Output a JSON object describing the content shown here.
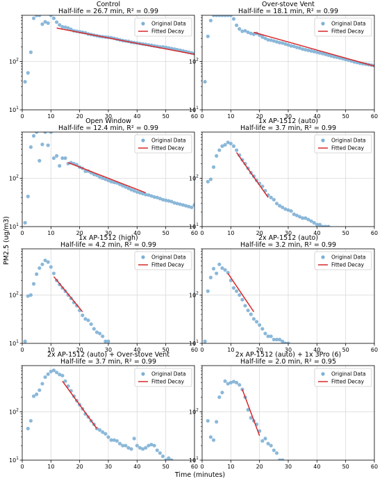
{
  "figure": {
    "xlabel": "Time (minutes)",
    "ylabel": "PM2.5 (ug/m3)"
  },
  "chart_data": [
    {
      "type": "scatter",
      "title": "Control",
      "subtitle": "Half-life = 26.7 min, R² = 0.99",
      "yscale": "log",
      "xlim": [
        0,
        60
      ],
      "ylim": [
        10,
        900
      ],
      "legend_position": "top-right",
      "series": [
        {
          "name": "Original Data",
          "x": [
            1,
            2,
            3,
            4,
            5,
            6,
            7,
            8,
            9,
            10,
            11,
            12,
            13,
            14,
            15,
            16,
            17,
            18,
            19,
            20,
            21,
            22,
            23,
            24,
            25,
            26,
            27,
            28,
            29,
            30,
            31,
            32,
            33,
            34,
            35,
            36,
            37,
            38,
            39,
            40,
            41,
            42,
            43,
            44,
            45,
            46,
            47,
            48,
            49,
            50,
            51,
            52,
            53,
            54,
            55,
            56,
            57,
            58,
            59,
            60
          ],
          "y": [
            38,
            58,
            155,
            780,
            900,
            900,
            590,
            660,
            620,
            900,
            780,
            650,
            570,
            520,
            510,
            490,
            460,
            430,
            420,
            410,
            400,
            390,
            370,
            360,
            350,
            340,
            330,
            325,
            320,
            315,
            310,
            300,
            290,
            280,
            270,
            265,
            260,
            250,
            245,
            240,
            235,
            230,
            225,
            220,
            215,
            210,
            205,
            200,
            200,
            195,
            190,
            185,
            180,
            175,
            170,
            165,
            160,
            155,
            150,
            145
          ]
        },
        {
          "name": "Fitted Decay",
          "line": true,
          "x": [
            12,
            60
          ],
          "y": [
            490,
            140
          ]
        }
      ]
    },
    {
      "type": "scatter",
      "title": "Over-stove Vent",
      "subtitle": "Half-life = 18.1 min, R² = 0.99",
      "yscale": "log",
      "xlim": [
        0,
        60
      ],
      "ylim": [
        10,
        900
      ],
      "legend_position": "top-right",
      "series": [
        {
          "name": "Original Data",
          "x": [
            1,
            2,
            3,
            4,
            5,
            6,
            7,
            8,
            9,
            10,
            11,
            12,
            13,
            14,
            15,
            16,
            17,
            18,
            19,
            20,
            21,
            22,
            23,
            24,
            25,
            26,
            27,
            28,
            29,
            30,
            31,
            32,
            33,
            34,
            35,
            36,
            37,
            38,
            39,
            40,
            41,
            42,
            43,
            44,
            45,
            46,
            47,
            48,
            49,
            50,
            51,
            52,
            53,
            54,
            55,
            56,
            57,
            58,
            59,
            60
          ],
          "y": [
            38,
            330,
            700,
            900,
            900,
            900,
            900,
            900,
            900,
            900,
            760,
            560,
            470,
            420,
            430,
            400,
            380,
            365,
            380,
            350,
            320,
            300,
            280,
            275,
            265,
            255,
            245,
            240,
            230,
            220,
            210,
            205,
            195,
            190,
            180,
            175,
            170,
            165,
            160,
            155,
            150,
            145,
            140,
            135,
            130,
            125,
            122,
            118,
            114,
            110,
            106,
            102,
            98,
            95,
            92,
            90,
            88,
            86,
            84,
            82
          ]
        },
        {
          "name": "Fitted Decay",
          "line": true,
          "x": [
            18,
            60
          ],
          "y": [
            400,
            80
          ]
        }
      ]
    },
    {
      "type": "scatter",
      "title": "Open Window",
      "subtitle": "Half-life = 12.4 min, R² = 0.99",
      "yscale": "log",
      "xlim": [
        0,
        60
      ],
      "ylim": [
        10,
        900
      ],
      "legend_position": "top-right",
      "series": [
        {
          "name": "Original Data",
          "x": [
            1,
            2,
            3,
            4,
            5,
            6,
            7,
            8,
            9,
            10,
            11,
            12,
            13,
            14,
            15,
            16,
            17,
            18,
            19,
            20,
            21,
            22,
            23,
            24,
            25,
            26,
            27,
            28,
            29,
            30,
            31,
            32,
            33,
            34,
            35,
            36,
            37,
            38,
            39,
            40,
            41,
            42,
            43,
            44,
            45,
            46,
            47,
            48,
            49,
            50,
            51,
            52,
            53,
            54,
            55,
            56,
            57,
            58,
            59,
            60
          ],
          "y": [
            12,
            42,
            440,
            750,
            900,
            230,
            500,
            900,
            480,
            900,
            260,
            290,
            180,
            260,
            260,
            200,
            210,
            200,
            190,
            170,
            160,
            140,
            140,
            130,
            120,
            115,
            105,
            100,
            95,
            90,
            85,
            82,
            80,
            75,
            70,
            66,
            62,
            58,
            55,
            52,
            50,
            48,
            46,
            45,
            43,
            41,
            40,
            38,
            36,
            35,
            34,
            33,
            31,
            30,
            29,
            28,
            27,
            26,
            25,
            28
          ]
        },
        {
          "name": "Fitted Decay",
          "line": true,
          "x": [
            16,
            43
          ],
          "y": [
            210,
            50
          ]
        }
      ]
    },
    {
      "type": "scatter",
      "title": "1x AP-1512 (auto)",
      "subtitle": "Half-life = 3.7 min, R² = 0.99",
      "yscale": "log",
      "xlim": [
        0,
        60
      ],
      "ylim": [
        10,
        900
      ],
      "legend_position": "top-right",
      "series": [
        {
          "name": "Original Data",
          "x": [
            2,
            3,
            4,
            5,
            6,
            7,
            8,
            9,
            10,
            11,
            12,
            13,
            14,
            15,
            16,
            17,
            18,
            19,
            20,
            21,
            22,
            23,
            24,
            25,
            26,
            27,
            28,
            29,
            30,
            31,
            32,
            33,
            34,
            35,
            36,
            37,
            38,
            39,
            40,
            41,
            42,
            43,
            44
          ],
          "y": [
            85,
            95,
            170,
            290,
            380,
            460,
            490,
            550,
            520,
            460,
            380,
            300,
            240,
            200,
            160,
            130,
            110,
            90,
            78,
            68,
            55,
            45,
            40,
            36,
            30,
            27,
            25,
            23,
            22,
            21,
            18,
            17,
            16,
            15,
            15,
            14,
            13,
            12,
            11,
            11,
            10,
            10,
            10
          ]
        },
        {
          "name": "Fitted Decay",
          "line": true,
          "x": [
            12,
            23
          ],
          "y": [
            340,
            40
          ]
        }
      ]
    },
    {
      "type": "scatter",
      "title": "1x AP-1512 (high)",
      "subtitle": "Half-life = 4.2 min, R² = 0.99",
      "yscale": "log",
      "xlim": [
        0,
        60
      ],
      "ylim": [
        10,
        900
      ],
      "legend_position": "top-right",
      "series": [
        {
          "name": "Original Data",
          "x": [
            1,
            2,
            3,
            4,
            5,
            6,
            7,
            8,
            9,
            10,
            11,
            12,
            13,
            14,
            15,
            16,
            17,
            18,
            19,
            20,
            21,
            22,
            23,
            24,
            25,
            26,
            27,
            28,
            29,
            30
          ],
          "y": [
            11,
            95,
            100,
            170,
            270,
            360,
            430,
            520,
            480,
            380,
            280,
            200,
            165,
            140,
            120,
            100,
            85,
            70,
            60,
            48,
            38,
            32,
            30,
            25,
            20,
            17,
            16,
            14,
            11,
            11
          ]
        },
        {
          "name": "Fitted Decay",
          "line": true,
          "x": [
            11,
            21
          ],
          "y": [
            240,
            45
          ]
        }
      ]
    },
    {
      "type": "scatter",
      "title": "2x AP-1512 (auto)",
      "subtitle": "Half-life = 3.2 min, R² = 0.99",
      "yscale": "log",
      "xlim": [
        0,
        60
      ],
      "ylim": [
        10,
        900
      ],
      "legend_position": "top-right",
      "series": [
        {
          "name": "Original Data",
          "x": [
            1,
            2,
            3,
            4,
            5,
            6,
            7,
            8,
            9,
            10,
            11,
            12,
            13,
            14,
            15,
            16,
            17,
            18,
            19,
            20,
            21,
            22,
            23,
            24,
            25,
            26,
            27,
            28,
            29,
            30
          ],
          "y": [
            11,
            120,
            230,
            350,
            280,
            430,
            360,
            330,
            290,
            200,
            140,
            120,
            100,
            80,
            60,
            48,
            40,
            32,
            28,
            24,
            20,
            16,
            14,
            14,
            12,
            12,
            12,
            11,
            10,
            10
          ]
        },
        {
          "name": "Fitted Decay",
          "line": true,
          "x": [
            9,
            18
          ],
          "y": [
            280,
            45
          ]
        }
      ]
    },
    {
      "type": "scatter",
      "title": "2x AP-1512 (auto) + Over-stove Vent",
      "subtitle": "Half-life = 3.7 min, R² = 0.99",
      "yscale": "log",
      "xlim": [
        0,
        60
      ],
      "ylim": [
        10,
        900
      ],
      "legend_position": "top-right",
      "series": [
        {
          "name": "Original Data",
          "x": [
            2,
            3,
            4,
            5,
            6,
            7,
            8,
            9,
            10,
            11,
            12,
            13,
            14,
            15,
            16,
            17,
            18,
            19,
            20,
            21,
            22,
            23,
            24,
            25,
            26,
            27,
            28,
            29,
            30,
            31,
            32,
            33,
            34,
            35,
            36,
            37,
            38,
            39,
            40,
            41,
            42,
            43,
            44,
            45,
            46,
            47,
            48,
            49,
            50,
            51,
            52
          ],
          "y": [
            45,
            65,
            210,
            230,
            280,
            380,
            520,
            600,
            680,
            720,
            650,
            590,
            560,
            430,
            340,
            270,
            210,
            170,
            140,
            115,
            90,
            78,
            65,
            55,
            45,
            42,
            38,
            35,
            30,
            26,
            26,
            25,
            22,
            20,
            20,
            18,
            17,
            28,
            20,
            18,
            17,
            18,
            20,
            21,
            20,
            16,
            14,
            12,
            10,
            11,
            10
          ]
        },
        {
          "name": "Fitted Decay",
          "line": true,
          "x": [
            14,
            26
          ],
          "y": [
            430,
            45
          ]
        }
      ]
    },
    {
      "type": "scatter",
      "title": "2x AP-1512 (auto) + 1x 3Pro (6)",
      "subtitle": "Half-life = 2.0 min, R² = 0.95",
      "yscale": "log",
      "xlim": [
        0,
        60
      ],
      "ylim": [
        10,
        900
      ],
      "legend_position": "top-right",
      "series": [
        {
          "name": "Original Data",
          "x": [
            2,
            3,
            4,
            5,
            6,
            7,
            8,
            9,
            10,
            11,
            12,
            13,
            14,
            15,
            16,
            17,
            18,
            19,
            20,
            21,
            22,
            23,
            24,
            25,
            26,
            27,
            28
          ],
          "y": [
            65,
            30,
            26,
            62,
            200,
            250,
            430,
            380,
            400,
            420,
            400,
            360,
            290,
            200,
            110,
            75,
            65,
            55,
            40,
            25,
            28,
            22,
            20,
            16,
            14,
            10,
            10
          ]
        },
        {
          "name": "Fitted Decay",
          "line": true,
          "x": [
            14,
            20
          ],
          "y": [
            290,
            32
          ]
        }
      ]
    }
  ]
}
